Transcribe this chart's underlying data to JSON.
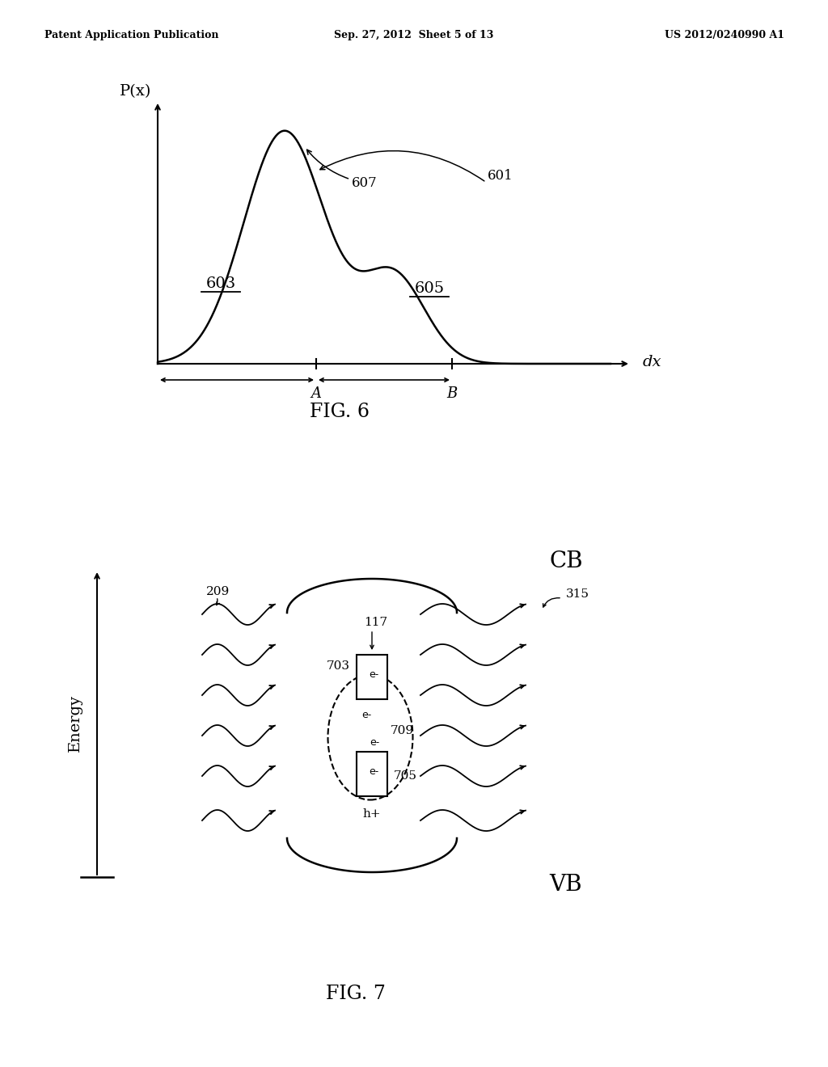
{
  "bg_color": "#ffffff",
  "header_left": "Patent Application Publication",
  "header_center": "Sep. 27, 2012  Sheet 5 of 13",
  "header_right": "US 2012/0240990 A1",
  "fig6_title": "FIG. 6",
  "fig7_title": "FIG. 7",
  "fig6_ylabel": "P(x)",
  "fig6_xlabel": "dx",
  "fig6_label_A": "A",
  "fig6_label_B": "B",
  "fig6_label_603": "603",
  "fig6_label_605": "605",
  "fig6_label_607": "607",
  "fig6_label_601": "601",
  "fig7_ylabel": "Energy",
  "fig7_label_CB": "CB",
  "fig7_label_VB": "VB",
  "fig7_label_117": "117",
  "fig7_label_209": "209",
  "fig7_label_315": "315",
  "fig7_label_703": "703",
  "fig7_label_705": "705",
  "fig7_label_709": "709",
  "fig7_label_hplus": "h+",
  "line_color": "#000000",
  "text_color": "#000000"
}
